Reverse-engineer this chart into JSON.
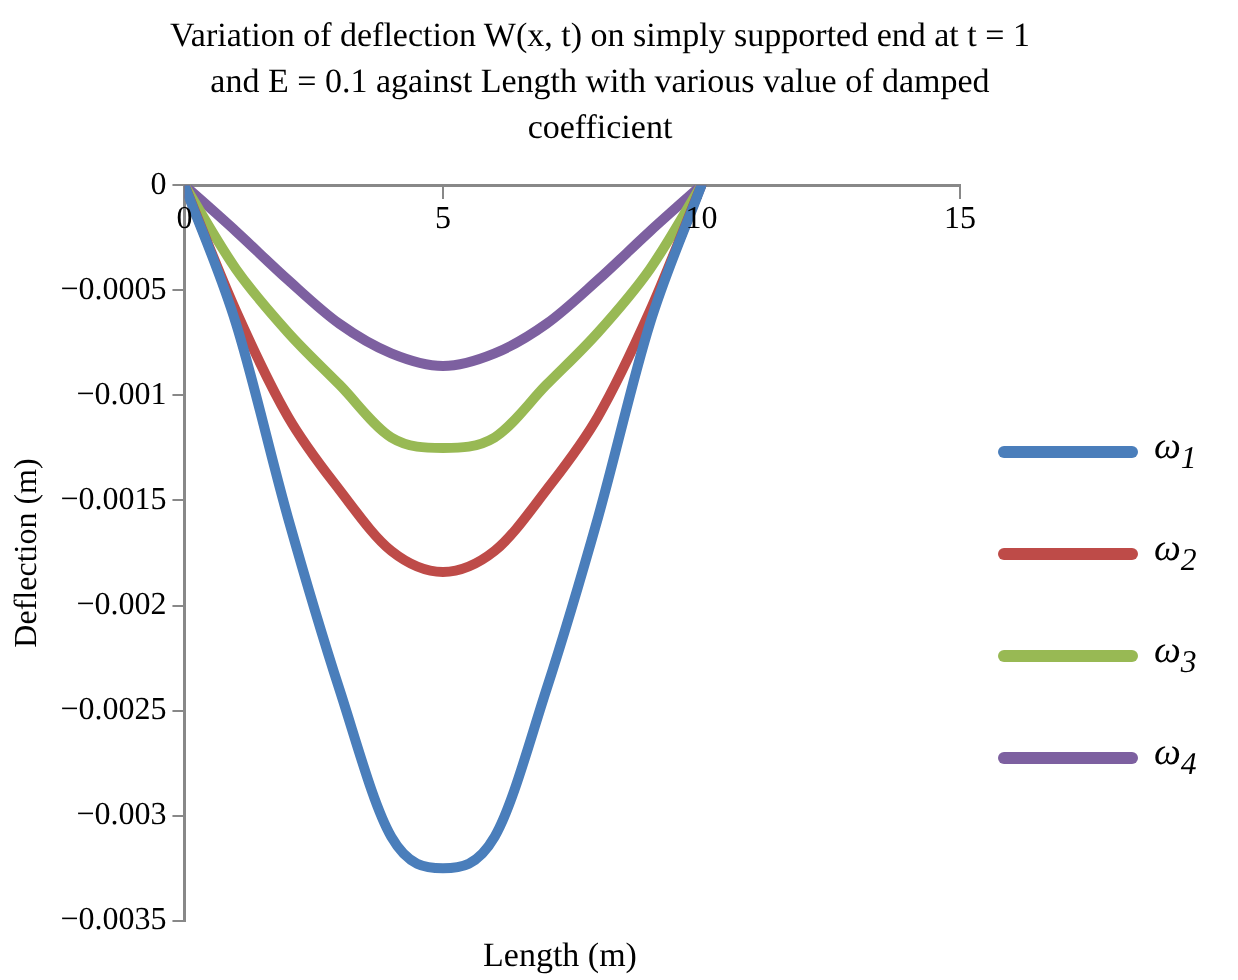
{
  "chart_data": {
    "type": "line",
    "title": "Variation of deflection W(x, t) on simply supported end at t = 1 and E = 0.1 against Length with various value of damped coefficient",
    "xlabel": "Length (m)",
    "ylabel": "Deflection (m)",
    "x": [
      0,
      1,
      2,
      3,
      4,
      5,
      6,
      7,
      8,
      9,
      10
    ],
    "series": [
      {
        "name": "ω$_{1}$",
        "color": "#4a7ebb",
        "values": [
          0,
          -0.00066,
          -0.00158,
          -0.0024,
          -0.0031,
          -0.00325,
          -0.0031,
          -0.0024,
          -0.00158,
          -0.00066,
          0
        ]
      },
      {
        "name": "ω$_{2}$",
        "color": "#be4b48",
        "values": [
          0,
          -0.0006,
          -0.0011,
          -0.00145,
          -0.00174,
          -0.00184,
          -0.00174,
          -0.00145,
          -0.0011,
          -0.0006,
          0
        ]
      },
      {
        "name": "ω$_{3}$",
        "color": "#98b954",
        "values": [
          0,
          -0.0004,
          -0.0007,
          -0.00095,
          -0.0012,
          -0.00125,
          -0.0012,
          -0.00095,
          -0.0007,
          -0.0004,
          0
        ]
      },
      {
        "name": "ω$_{4}$",
        "color": "#7d60a0",
        "values": [
          0,
          -0.00022,
          -0.00045,
          -0.00066,
          -0.0008,
          -0.00086,
          -0.0008,
          -0.00066,
          -0.00045,
          -0.00022,
          0
        ]
      }
    ],
    "xlim": [
      0,
      15
    ],
    "xticks": [
      0,
      5,
      10,
      15
    ],
    "ylim": [
      -0.0035,
      0
    ],
    "yticks": [
      {
        "value": 0,
        "label": "0"
      },
      {
        "value": -0.0005,
        "label": "−0.0005"
      },
      {
        "value": -0.001,
        "label": "−0.001"
      },
      {
        "value": -0.0015,
        "label": "−0.0015"
      },
      {
        "value": -0.002,
        "label": "−0.002"
      },
      {
        "value": -0.0025,
        "label": "−0.0025"
      },
      {
        "value": -0.003,
        "label": "−0.003"
      },
      {
        "value": -0.0035,
        "label": "−0.0035"
      }
    ],
    "grid": false,
    "legend": "right",
    "marker": "none",
    "line_style": "solid"
  }
}
